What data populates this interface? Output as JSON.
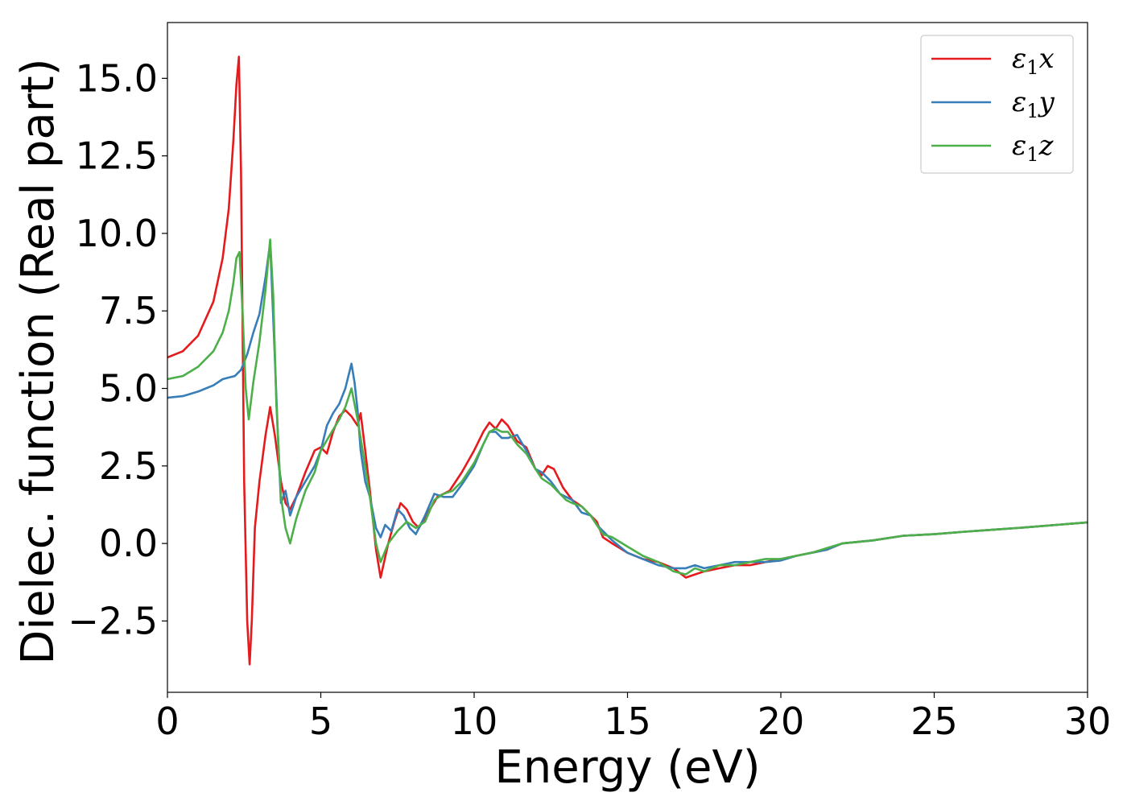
{
  "chart_data": {
    "type": "line",
    "xlabel": "Energy (eV)",
    "ylabel": "Dielec. function (Real part)",
    "xlim": [
      0,
      30
    ],
    "ylim": [
      -4.8,
      16.8
    ],
    "x_ticks": [
      0,
      5,
      10,
      15,
      20,
      25,
      30
    ],
    "x_tick_labels": [
      "0",
      "5",
      "10",
      "15",
      "20",
      "25",
      "30"
    ],
    "y_ticks": [
      -2.5,
      0.0,
      2.5,
      5.0,
      7.5,
      10.0,
      12.5,
      15.0
    ],
    "y_tick_labels": [
      "−2.5",
      "0.0",
      "2.5",
      "5.0",
      "7.5",
      "10.0",
      "12.5",
      "15.0"
    ],
    "grid": false,
    "legend_position": "top-right",
    "series": [
      {
        "name": "ε1x",
        "legend_symbol": "ε",
        "legend_sub": "1",
        "legend_var": "x",
        "color": "#e41a1c",
        "x": [
          0,
          0.5,
          1.0,
          1.5,
          1.8,
          2.0,
          2.15,
          2.25,
          2.33,
          2.4,
          2.5,
          2.6,
          2.68,
          2.75,
          2.85,
          3.0,
          3.2,
          3.35,
          3.5,
          3.7,
          3.85,
          4.0,
          4.2,
          4.5,
          4.8,
          5.0,
          5.2,
          5.4,
          5.6,
          5.8,
          6.0,
          6.2,
          6.3,
          6.45,
          6.6,
          6.8,
          6.95,
          7.2,
          7.4,
          7.6,
          7.8,
          8.0,
          8.2,
          8.5,
          8.8,
          9.2,
          9.6,
          10.0,
          10.3,
          10.5,
          10.7,
          10.9,
          11.1,
          11.4,
          11.7,
          12.0,
          12.2,
          12.4,
          12.6,
          12.9,
          13.2,
          13.5,
          13.8,
          14.0,
          14.2,
          14.5,
          15.0,
          15.5,
          16.0,
          16.5,
          16.9,
          17.2,
          17.5,
          18.0,
          18.5,
          19.0,
          19.5,
          20.0,
          20.5,
          21.0,
          21.5,
          22.0,
          23.0,
          24.0,
          25.0,
          26.0,
          27.0,
          28.0,
          29.0,
          30.0
        ],
        "y": [
          6.0,
          6.2,
          6.7,
          7.8,
          9.2,
          10.8,
          13.0,
          14.8,
          15.7,
          12.0,
          2.0,
          -2.5,
          -3.9,
          -2.5,
          0.5,
          2.0,
          3.5,
          4.4,
          3.5,
          2.0,
          1.3,
          1.1,
          1.5,
          2.3,
          3.0,
          3.1,
          2.9,
          3.6,
          4.1,
          4.3,
          4.1,
          3.8,
          4.2,
          3.0,
          1.7,
          -0.2,
          -1.1,
          0.0,
          0.7,
          1.3,
          1.1,
          0.7,
          0.5,
          1.0,
          1.5,
          1.7,
          2.3,
          3.0,
          3.6,
          3.9,
          3.7,
          4.0,
          3.8,
          3.3,
          3.1,
          2.4,
          2.2,
          2.5,
          2.4,
          1.8,
          1.4,
          1.2,
          0.9,
          0.7,
          0.2,
          0.0,
          -0.3,
          -0.5,
          -0.6,
          -0.8,
          -1.1,
          -1.0,
          -0.9,
          -0.8,
          -0.7,
          -0.7,
          -0.6,
          -0.5,
          -0.4,
          -0.3,
          -0.2,
          0.0,
          0.1,
          0.25,
          0.3,
          0.38,
          0.45,
          0.52,
          0.6,
          0.68
        ]
      },
      {
        "name": "ε1y",
        "legend_symbol": "ε",
        "legend_sub": "1",
        "legend_var": "y",
        "color": "#377eb8",
        "x": [
          0,
          0.5,
          1.0,
          1.5,
          1.8,
          2.0,
          2.2,
          2.4,
          2.6,
          2.8,
          3.0,
          3.2,
          3.35,
          3.5,
          3.6,
          3.7,
          3.85,
          4.0,
          4.2,
          4.5,
          4.8,
          5.0,
          5.2,
          5.4,
          5.6,
          5.8,
          6.0,
          6.1,
          6.2,
          6.3,
          6.45,
          6.6,
          6.8,
          6.95,
          7.1,
          7.3,
          7.5,
          7.7,
          7.9,
          8.1,
          8.4,
          8.7,
          9.0,
          9.3,
          9.6,
          10.0,
          10.3,
          10.5,
          10.7,
          10.9,
          11.1,
          11.4,
          11.7,
          12.0,
          12.2,
          12.5,
          12.8,
          13.0,
          13.2,
          13.5,
          13.8,
          14.0,
          14.2,
          14.5,
          15.0,
          15.5,
          16.0,
          16.5,
          16.9,
          17.2,
          17.5,
          18.0,
          18.5,
          19.0,
          19.5,
          20.0,
          20.5,
          21.0,
          21.5,
          22.0,
          23.0,
          24.0,
          25.0,
          26.0,
          27.0,
          28.0,
          29.0,
          30.0
        ],
        "y": [
          4.7,
          4.75,
          4.9,
          5.1,
          5.3,
          5.35,
          5.4,
          5.6,
          6.1,
          6.8,
          7.4,
          8.6,
          9.7,
          6.0,
          3.5,
          1.3,
          1.7,
          0.9,
          1.5,
          2.0,
          2.5,
          3.0,
          3.8,
          4.2,
          4.5,
          5.0,
          5.8,
          5.2,
          4.3,
          3.0,
          2.0,
          1.5,
          0.5,
          0.2,
          0.6,
          0.4,
          1.1,
          0.9,
          0.5,
          0.3,
          0.9,
          1.6,
          1.5,
          1.5,
          1.9,
          2.5,
          3.2,
          3.6,
          3.6,
          3.4,
          3.4,
          3.5,
          3.0,
          2.4,
          2.3,
          2.0,
          1.6,
          1.5,
          1.4,
          1.0,
          0.9,
          0.6,
          0.4,
          0.1,
          -0.3,
          -0.5,
          -0.7,
          -0.8,
          -0.8,
          -0.7,
          -0.8,
          -0.7,
          -0.6,
          -0.6,
          -0.6,
          -0.55,
          -0.4,
          -0.3,
          -0.2,
          0.0,
          0.1,
          0.25,
          0.3,
          0.38,
          0.45,
          0.52,
          0.6,
          0.68
        ]
      },
      {
        "name": "ε1z",
        "legend_symbol": "ε",
        "legend_sub": "1",
        "legend_var": "z",
        "color": "#4daf4a",
        "x": [
          0,
          0.5,
          1.0,
          1.5,
          1.8,
          2.0,
          2.15,
          2.25,
          2.35,
          2.45,
          2.55,
          2.65,
          2.8,
          3.0,
          3.2,
          3.35,
          3.45,
          3.55,
          3.7,
          3.85,
          4.0,
          4.2,
          4.5,
          4.8,
          5.0,
          5.3,
          5.6,
          5.8,
          6.0,
          6.2,
          6.4,
          6.6,
          6.8,
          6.95,
          7.2,
          7.5,
          7.8,
          8.1,
          8.4,
          8.7,
          9.0,
          9.3,
          9.6,
          10.0,
          10.3,
          10.5,
          10.7,
          10.9,
          11.1,
          11.4,
          11.7,
          12.0,
          12.2,
          12.5,
          12.8,
          13.0,
          13.2,
          13.5,
          13.8,
          14.0,
          14.2,
          14.5,
          15.0,
          15.5,
          16.0,
          16.5,
          16.9,
          17.2,
          17.5,
          18.0,
          18.5,
          19.0,
          19.5,
          20.0,
          20.5,
          21.0,
          21.5,
          22.0,
          23.0,
          24.0,
          25.0,
          26.0,
          27.0,
          28.0,
          29.0,
          30.0
        ],
        "y": [
          5.3,
          5.4,
          5.7,
          6.2,
          6.8,
          7.5,
          8.4,
          9.2,
          9.4,
          7.5,
          5.0,
          4.0,
          5.2,
          6.5,
          8.2,
          9.8,
          8.0,
          4.5,
          1.5,
          0.5,
          0.0,
          0.8,
          1.7,
          2.3,
          3.0,
          3.5,
          4.0,
          4.4,
          5.0,
          4.0,
          2.8,
          1.5,
          0.0,
          -0.6,
          0.0,
          0.4,
          0.7,
          0.5,
          0.7,
          1.4,
          1.6,
          1.7,
          2.0,
          2.6,
          3.2,
          3.6,
          3.7,
          3.6,
          3.6,
          3.2,
          2.9,
          2.4,
          2.1,
          1.9,
          1.6,
          1.4,
          1.3,
          1.2,
          0.9,
          0.6,
          0.3,
          0.2,
          -0.1,
          -0.4,
          -0.6,
          -0.9,
          -1.0,
          -0.8,
          -0.9,
          -0.7,
          -0.7,
          -0.6,
          -0.5,
          -0.5,
          -0.4,
          -0.3,
          -0.15,
          0.0,
          0.1,
          0.25,
          0.3,
          0.38,
          0.45,
          0.52,
          0.6,
          0.68
        ]
      }
    ]
  }
}
